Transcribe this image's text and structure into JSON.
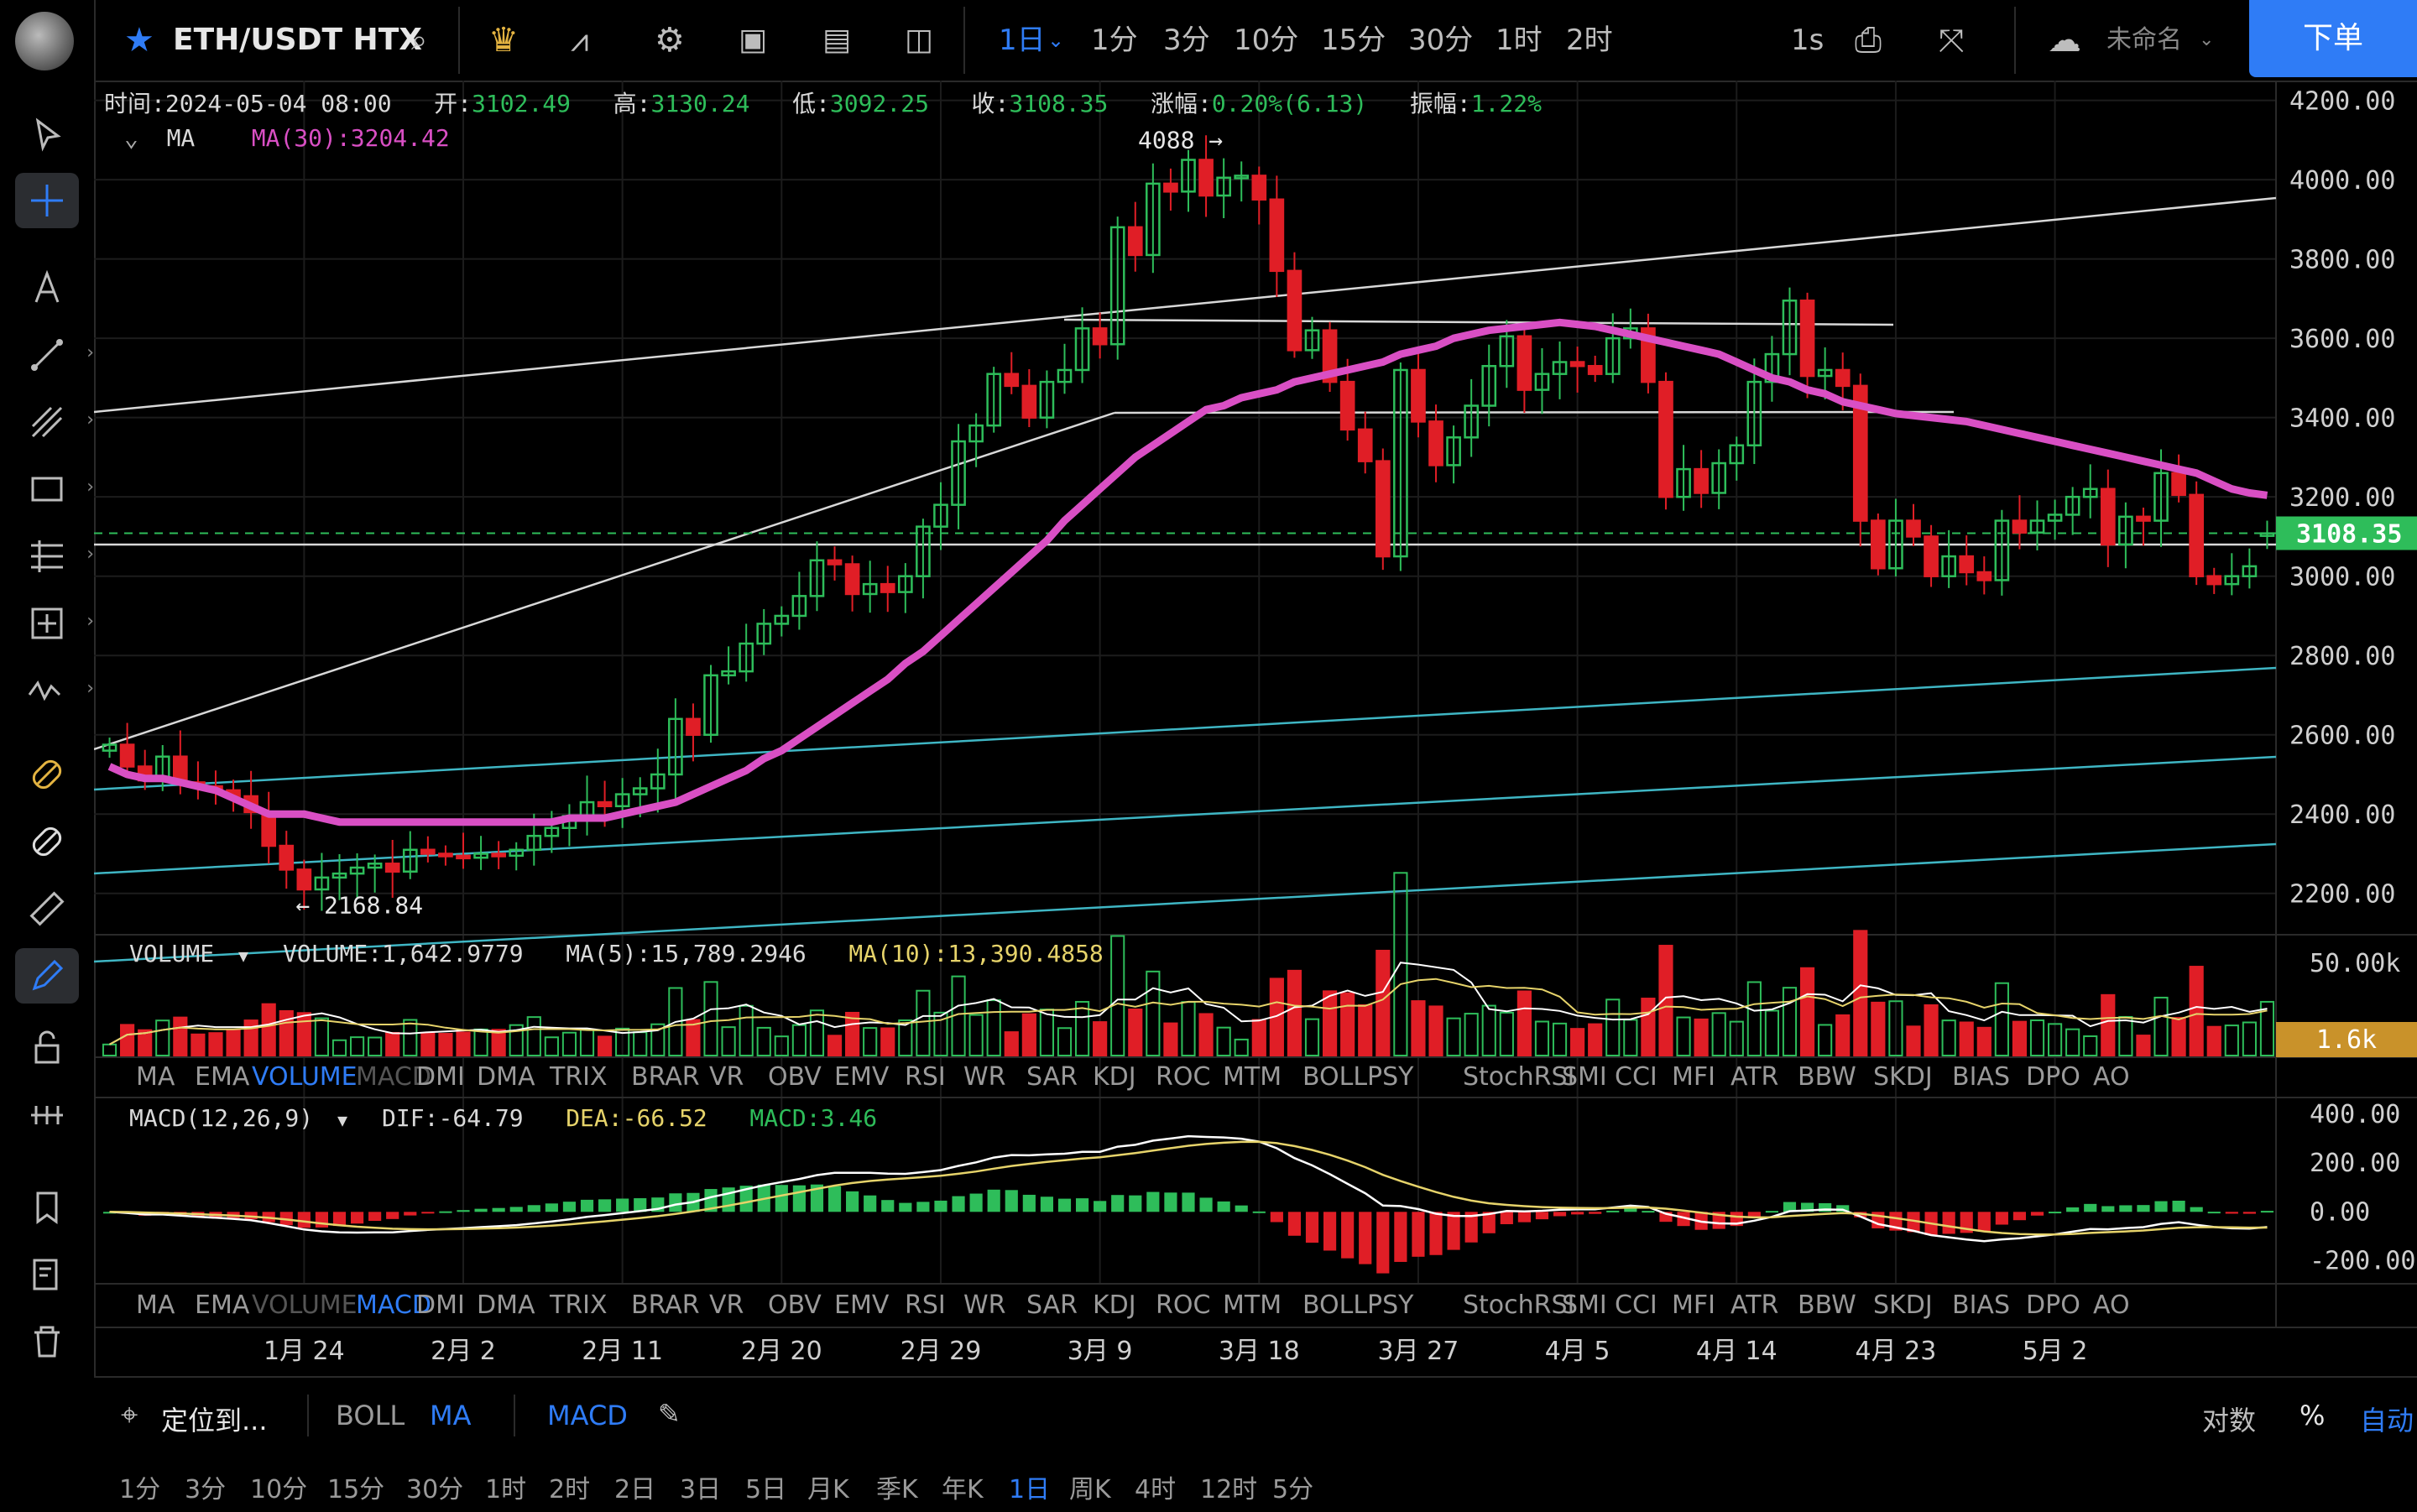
{
  "toolbar": {
    "symbol": "ETH/USDT HTX",
    "intervals": [
      "1日",
      "1分",
      "3分",
      "10分",
      "15分",
      "30分",
      "1时",
      "2时"
    ],
    "realtime": "1s",
    "layout_name": "未命名",
    "order_button": "下单",
    "accent": "#2f7cf6"
  },
  "ohlc": {
    "time_label": "时间:",
    "time": "2024-05-04 08:00",
    "open_label": "开:",
    "open": "3102.49",
    "high_label": "高:",
    "high": "3130.24",
    "low_label": "低:",
    "low": "3092.25",
    "close_label": "收:",
    "close": "3108.35",
    "change_label": "涨幅:",
    "change": "0.20%(6.13)",
    "amp_label": "振幅:",
    "amp": "1.22%"
  },
  "ma_legend": {
    "name": "MA",
    "value": "MA(30):3204.42"
  },
  "price_axis": [
    "4200.00",
    "4000.00",
    "3800.00",
    "3600.00",
    "3400.00",
    "3200.00",
    "3000.00",
    "2800.00",
    "2600.00",
    "2400.00",
    "2200.00"
  ],
  "last_price": "3108.35",
  "high_marker": "4088",
  "low_marker": "2168.84",
  "volume_legend": {
    "name": "VOLUME",
    "vol": "VOLUME:1,642.9779",
    "ma5": "MA(5):15,789.2946",
    "ma10": "MA(10):13,390.4858"
  },
  "volume_axis": [
    "50.00k"
  ],
  "volume_last": "1.6k",
  "macd_legend": {
    "name": "MACD(12,26,9)",
    "dif": "DIF:-64.79",
    "dea": "DEA:-66.52",
    "macd": "MACD:3.46"
  },
  "macd_axis": [
    "400.00",
    "200.00",
    "0.00",
    "-200.00"
  ],
  "indicator_tabs": [
    "MA",
    "EMA",
    "VOLUME",
    "MACD",
    "DMI",
    "DMA",
    "TRIX",
    "BRAR",
    "VR",
    "OBV",
    "EMV",
    "RSI",
    "WR",
    "SAR",
    "KDJ",
    "ROC",
    "MTM",
    "BOLL",
    "PSY",
    "StochRSI",
    "SMI",
    "CCI",
    "MFI",
    "ATR",
    "BBW",
    "SKDJ",
    "BIAS",
    "DPO",
    "AO"
  ],
  "date_axis": [
    "1月 24",
    "2月 2",
    "2月 11",
    "2月 20",
    "2月 29",
    "3月 9",
    "3月 18",
    "3月 27",
    "4月 5",
    "4月 14",
    "4月 23",
    "5月 2"
  ],
  "bottom": {
    "locate": "定位到...",
    "boll": "BOLL",
    "ma": "MA",
    "macd": "MACD",
    "log": "对数",
    "percent": "%",
    "auto": "自动",
    "periods": [
      "1分",
      "3分",
      "10分",
      "15分",
      "30分",
      "1时",
      "2时",
      "2日",
      "3日",
      "5日",
      "月K",
      "季K",
      "年K",
      "1日",
      "周K",
      "4时",
      "12时",
      "5分"
    ]
  },
  "colors": {
    "up": "#2ebd5a",
    "down": "#e01e26",
    "ma30": "#d94fc4",
    "ma10": "#e6d36a",
    "accent": "#2f7cf6",
    "price_tag": "#2ebd5a",
    "volume_tag": "#c9922a"
  },
  "chart_data": {
    "type": "candlestick",
    "x_start": "2024-01-13",
    "x_end": "2024-05-04",
    "ylim": [
      2100,
      4250
    ],
    "close": [
      2575,
      2520,
      2485,
      2545,
      2480,
      2470,
      2460,
      2445,
      2405,
      2320,
      2260,
      2210,
      2240,
      2250,
      2265,
      2275,
      2255,
      2310,
      2300,
      2295,
      2290,
      2300,
      2295,
      2310,
      2345,
      2365,
      2395,
      2430,
      2420,
      2450,
      2465,
      2500,
      2640,
      2600,
      2750,
      2760,
      2830,
      2880,
      2900,
      2950,
      3040,
      3030,
      2955,
      2980,
      2960,
      3000,
      3125,
      3180,
      3340,
      3380,
      3510,
      3480,
      3400,
      3490,
      3520,
      3625,
      3585,
      3880,
      3810,
      3990,
      3970,
      4050,
      3960,
      4005,
      4010,
      3950,
      3770,
      3570,
      3620,
      3490,
      3370,
      3290,
      3050,
      3520,
      3390,
      3280,
      3350,
      3430,
      3530,
      3605,
      3470,
      3510,
      3540,
      3530,
      3510,
      3600,
      3625,
      3490,
      3200,
      3270,
      3210,
      3285,
      3330,
      3490,
      3560,
      3695,
      3505,
      3520,
      3480,
      3140,
      3020,
      3140,
      3100,
      3000,
      3050,
      3010,
      2990,
      3140,
      3110,
      3140,
      3155,
      3200,
      3220,
      3080,
      3150,
      3140,
      3260,
      3205,
      3000,
      2980,
      3000,
      3025,
      3108
    ],
    "ma30": [
      2520,
      2500,
      2490,
      2490,
      2480,
      2470,
      2460,
      2440,
      2420,
      2400,
      2400,
      2400,
      2390,
      2380,
      2380,
      2380,
      2380,
      2380,
      2380,
      2380,
      2380,
      2380,
      2380,
      2380,
      2380,
      2380,
      2390,
      2390,
      2390,
      2400,
      2410,
      2420,
      2430,
      2450,
      2470,
      2490,
      2510,
      2540,
      2560,
      2590,
      2620,
      2650,
      2680,
      2710,
      2740,
      2780,
      2810,
      2850,
      2890,
      2930,
      2970,
      3010,
      3050,
      3090,
      3140,
      3180,
      3220,
      3260,
      3300,
      3330,
      3360,
      3390,
      3420,
      3430,
      3450,
      3460,
      3470,
      3490,
      3500,
      3510,
      3520,
      3530,
      3540,
      3560,
      3570,
      3580,
      3600,
      3610,
      3620,
      3625,
      3630,
      3635,
      3640,
      3635,
      3630,
      3620,
      3610,
      3600,
      3590,
      3580,
      3570,
      3560,
      3540,
      3520,
      3500,
      3490,
      3470,
      3460,
      3440,
      3430,
      3420,
      3410,
      3405,
      3400,
      3395,
      3390,
      3380,
      3370,
      3360,
      3350,
      3340,
      3330,
      3320,
      3310,
      3300,
      3290,
      3280,
      3270,
      3260,
      3240,
      3220,
      3210,
      3204
    ]
  }
}
